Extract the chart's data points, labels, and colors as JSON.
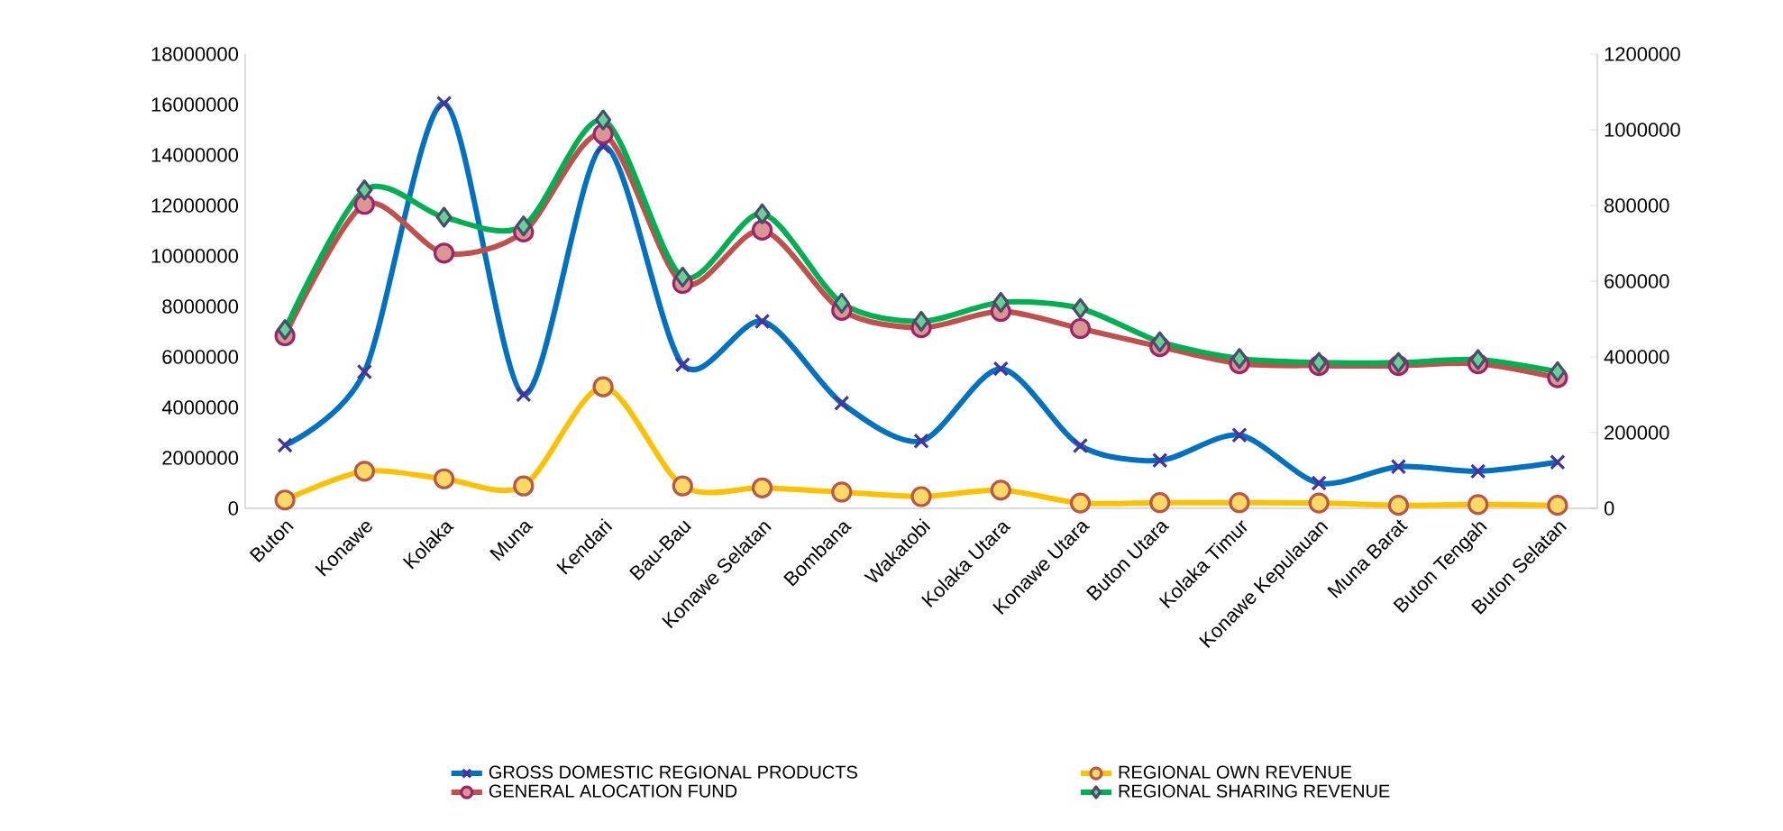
{
  "chart_data": {
    "type": "line",
    "categories": [
      "Buton",
      "Konawe",
      "Kolaka",
      "Muna",
      "Kendari",
      "Bau-Bau",
      "Konawe Selatan",
      "Bombana",
      "Wakatobi",
      "Kolaka Utara",
      "Konawe Utara",
      "Buton Utara",
      "Kolaka Timur",
      "Konawe Kepulauan",
      "Muna Barat",
      "Buton Tengah",
      "Buton Selatan"
    ],
    "series": [
      {
        "name": "GROSS DOMESTIC REGIONAL PRODUCTS",
        "color": "#0070c0",
        "marker": "cross",
        "values": [
          2500000,
          5410000,
          16050000,
          4510000,
          14350000,
          5690000,
          7410000,
          4170000,
          2670000,
          5530000,
          2480000,
          1900000,
          2900000,
          1000000,
          1650000,
          1470000,
          1830000
        ]
      },
      {
        "name": "REGIONAL OWN REVENUE",
        "color": "#ffc000",
        "marker": "circle",
        "axis": "y2",
        "values": [
          22000,
          98000,
          78000,
          59000,
          321000,
          59000,
          54000,
          43000,
          31000,
          48000,
          14000,
          15000,
          15000,
          14000,
          8000,
          10000,
          8000
        ]
      },
      {
        "name": "GENERAL ALOCATION FUND",
        "color": "#c0504d",
        "marker": "circle",
        "axis": "y2",
        "values": [
          456000,
          803000,
          674000,
          730000,
          989000,
          594000,
          735000,
          523000,
          477000,
          520000,
          475000,
          427000,
          382000,
          377000,
          377000,
          382000,
          345000
        ]
      },
      {
        "name": "REGIONAL SHARING REVENUE",
        "color": "#00b050",
        "marker": "diamond",
        "axis": "y2",
        "values": [
          472000,
          841000,
          769000,
          746000,
          1026000,
          611000,
          778000,
          542000,
          494000,
          544000,
          528000,
          440000,
          396000,
          385000,
          385000,
          393000,
          361000
        ]
      }
    ],
    "ylim": [
      0,
      18000000
    ],
    "yticks": [
      0,
      2000000,
      4000000,
      6000000,
      8000000,
      10000000,
      12000000,
      14000000,
      16000000,
      18000000
    ],
    "y2lim": [
      0,
      1200000
    ],
    "y2ticks": [
      0,
      200000,
      400000,
      600000,
      800000,
      1000000,
      1200000
    ],
    "legend": "bottom",
    "grid": false,
    "line_style": "solid"
  }
}
